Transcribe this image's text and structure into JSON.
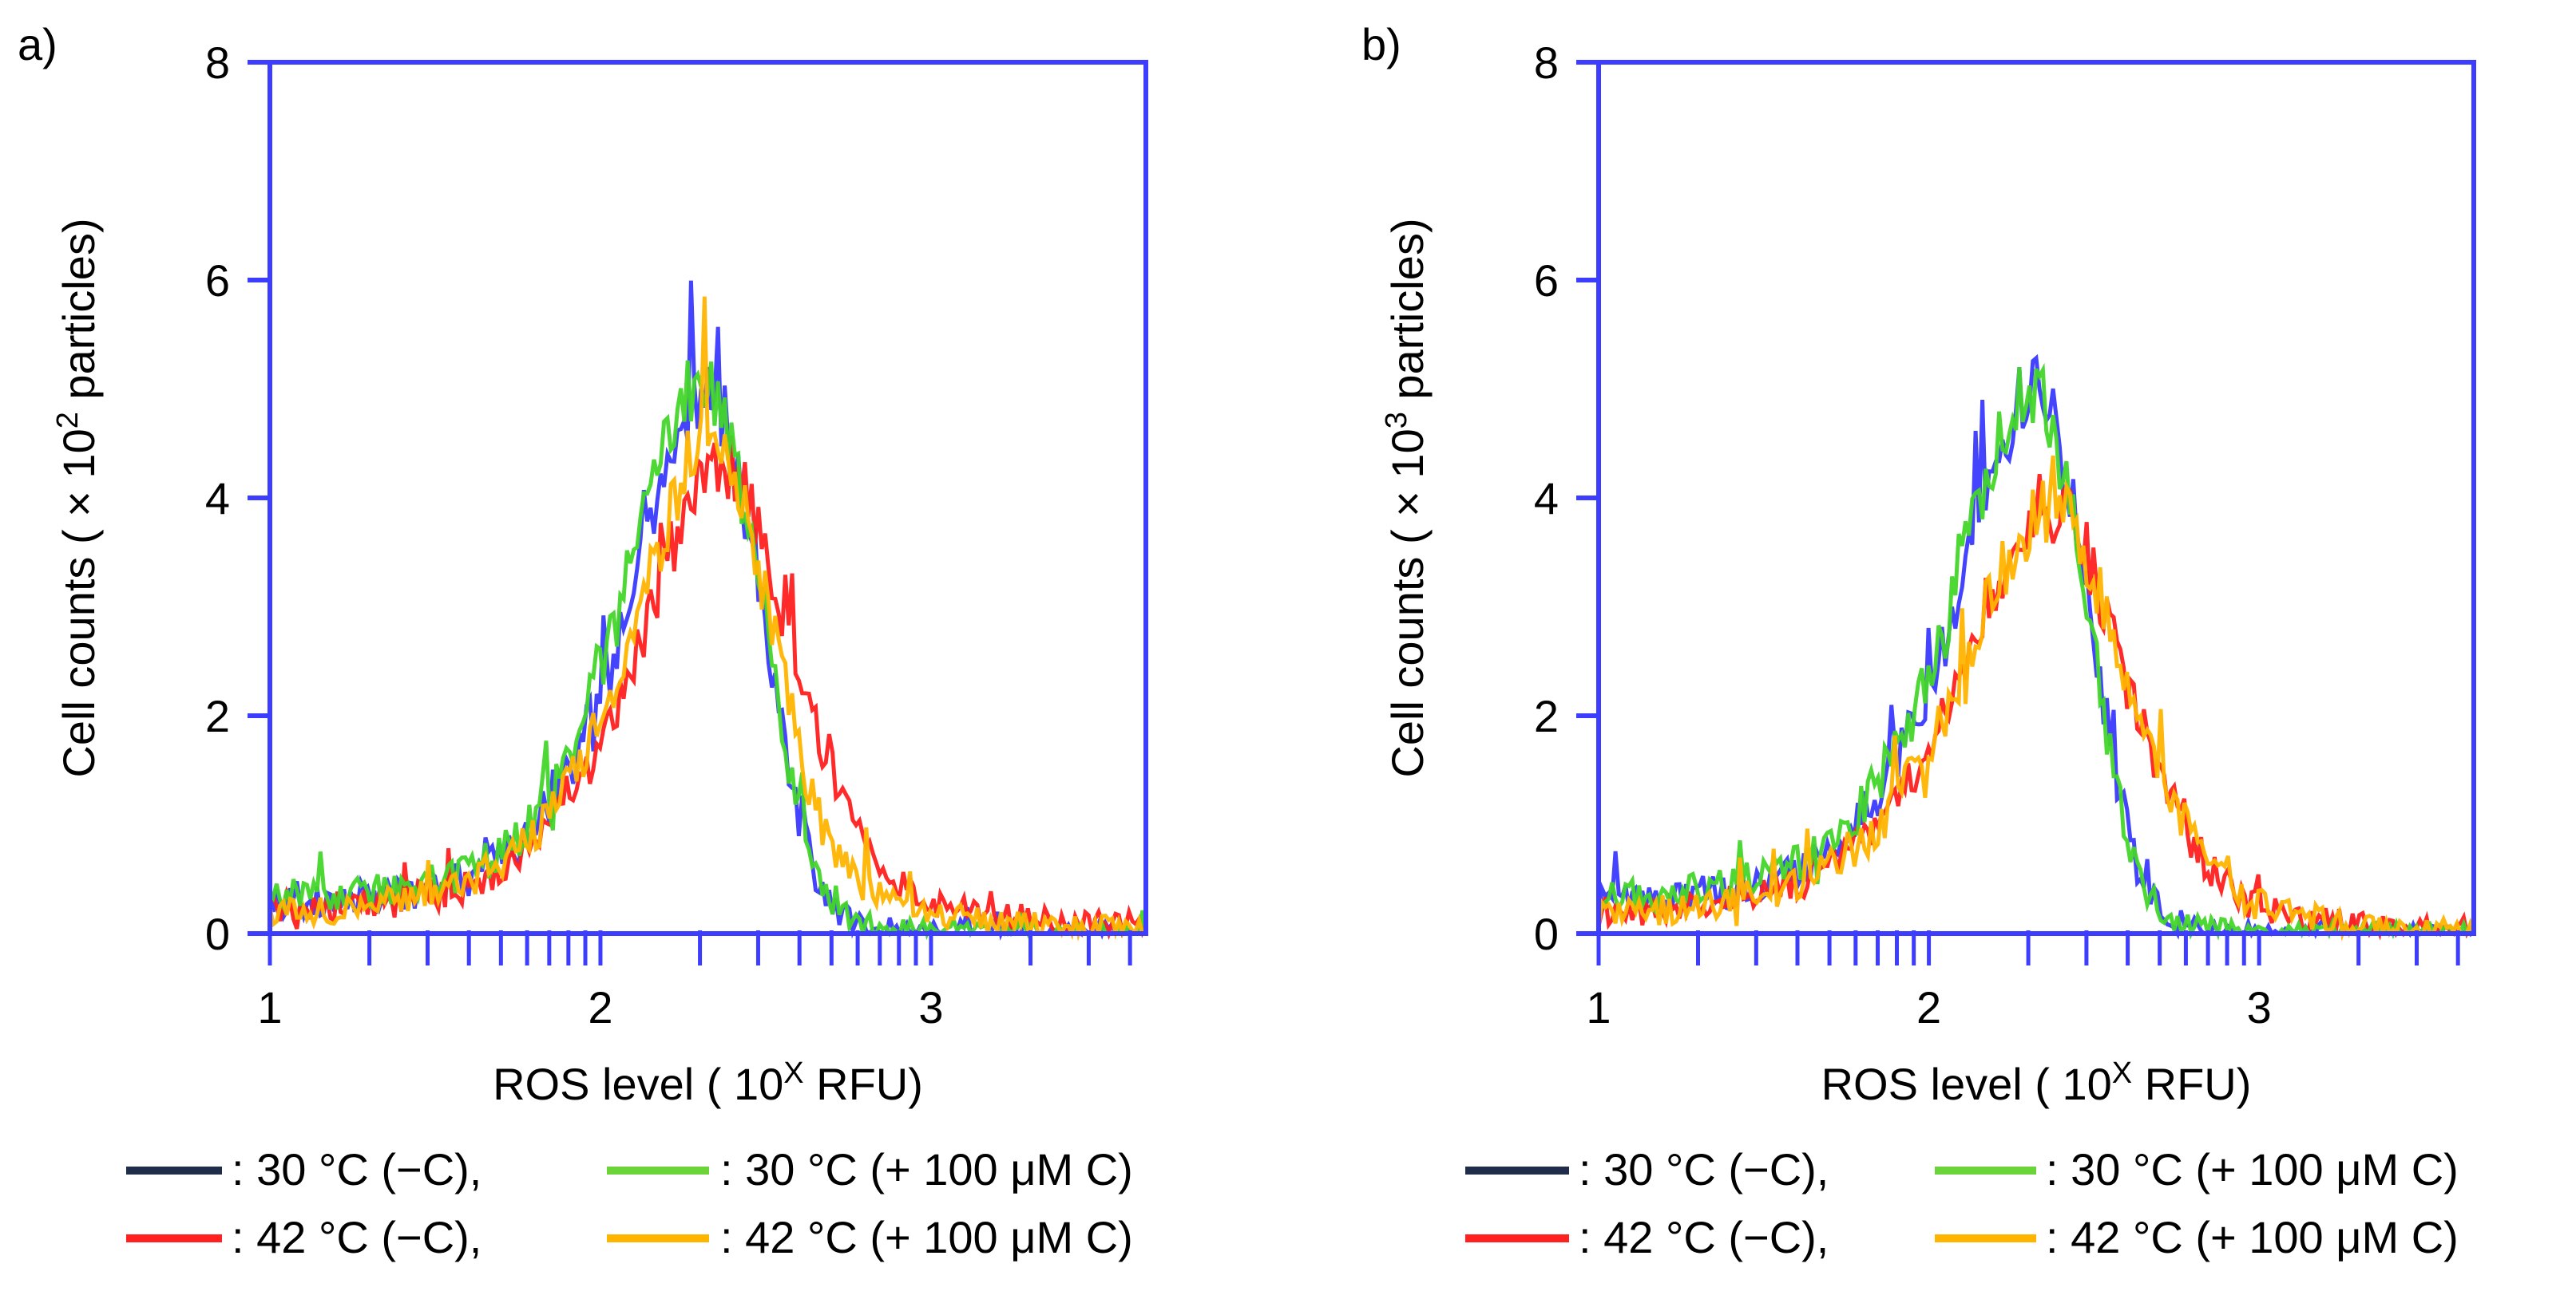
{
  "chart_data": [
    {
      "panel_label": "a)",
      "type": "line",
      "xlabel": {
        "pre": "ROS level ( 10",
        "sup": "X",
        "post": " RFU)"
      },
      "ylabel": {
        "pre": "Cell counts ( × 10",
        "sup": "2",
        "post": " particles)"
      },
      "xlim": [
        1,
        3.65
      ],
      "ylim": [
        0,
        8
      ],
      "x_ticks": [
        1,
        2,
        3
      ],
      "y_ticks": [
        0,
        2,
        4,
        6,
        8
      ],
      "minor_x_ticks_log": true,
      "grid": false,
      "plot_frame_color": "#3d3dff",
      "legend_position": "bottom",
      "series": [
        {
          "name": ": 30 °C (−C),",
          "color": "#3a3aff",
          "legend_color": "#1f2d4a",
          "points": [
            [
              1.0,
              0.3
            ],
            [
              1.2,
              0.3
            ],
            [
              1.4,
              0.35
            ],
            [
              1.6,
              0.5
            ],
            [
              1.75,
              0.8
            ],
            [
              1.85,
              1.2
            ],
            [
              1.95,
              1.8
            ],
            [
              2.05,
              2.6
            ],
            [
              2.12,
              3.4
            ],
            [
              2.2,
              4.2
            ],
            [
              2.27,
              4.8
            ],
            [
              2.32,
              5.0
            ],
            [
              2.37,
              4.7
            ],
            [
              2.42,
              4.2
            ],
            [
              2.47,
              3.4
            ],
            [
              2.52,
              2.4
            ],
            [
              2.57,
              1.5
            ],
            [
              2.62,
              0.8
            ],
            [
              2.68,
              0.35
            ],
            [
              2.75,
              0.12
            ],
            [
              2.85,
              0.05
            ],
            [
              3.0,
              0.02
            ],
            [
              3.3,
              0.01
            ],
            [
              3.65,
              0.0
            ]
          ]
        },
        {
          "name": ": 42 °C (−C),",
          "color": "#ff2020",
          "legend_color": "#ff2020",
          "points": [
            [
              1.0,
              0.25
            ],
            [
              1.2,
              0.25
            ],
            [
              1.4,
              0.3
            ],
            [
              1.6,
              0.45
            ],
            [
              1.75,
              0.7
            ],
            [
              1.85,
              1.0
            ],
            [
              1.95,
              1.5
            ],
            [
              2.05,
              2.0
            ],
            [
              2.12,
              2.7
            ],
            [
              2.2,
              3.4
            ],
            [
              2.27,
              3.9
            ],
            [
              2.33,
              4.2
            ],
            [
              2.4,
              4.3
            ],
            [
              2.45,
              4.0
            ],
            [
              2.5,
              3.6
            ],
            [
              2.55,
              3.0
            ],
            [
              2.6,
              2.4
            ],
            [
              2.67,
              1.7
            ],
            [
              2.75,
              1.1
            ],
            [
              2.85,
              0.6
            ],
            [
              2.95,
              0.35
            ],
            [
              3.1,
              0.22
            ],
            [
              3.3,
              0.15
            ],
            [
              3.5,
              0.1
            ],
            [
              3.65,
              0.08
            ]
          ]
        },
        {
          "name": ": 30 °C (+ 100 μM C)",
          "color": "#44d62a",
          "legend_color": "#6ad43a",
          "points": [
            [
              1.0,
              0.35
            ],
            [
              1.2,
              0.35
            ],
            [
              1.4,
              0.4
            ],
            [
              1.6,
              0.55
            ],
            [
              1.75,
              0.85
            ],
            [
              1.85,
              1.3
            ],
            [
              1.95,
              2.0
            ],
            [
              2.05,
              2.9
            ],
            [
              2.12,
              3.7
            ],
            [
              2.2,
              4.5
            ],
            [
              2.27,
              5.0
            ],
            [
              2.32,
              5.1
            ],
            [
              2.37,
              4.8
            ],
            [
              2.42,
              4.3
            ],
            [
              2.47,
              3.5
            ],
            [
              2.52,
              2.5
            ],
            [
              2.57,
              1.6
            ],
            [
              2.62,
              0.9
            ],
            [
              2.68,
              0.4
            ],
            [
              2.75,
              0.15
            ],
            [
              2.85,
              0.06
            ],
            [
              3.0,
              0.02
            ],
            [
              3.65,
              0.0
            ]
          ]
        },
        {
          "name": ": 42 °C (+ 100 μM C)",
          "color": "#ffb400",
          "legend_color": "#ffb400",
          "points": [
            [
              1.0,
              0.2
            ],
            [
              1.2,
              0.22
            ],
            [
              1.4,
              0.3
            ],
            [
              1.6,
              0.45
            ],
            [
              1.75,
              0.75
            ],
            [
              1.85,
              1.1
            ],
            [
              1.95,
              1.6
            ],
            [
              2.05,
              2.3
            ],
            [
              2.12,
              3.0
            ],
            [
              2.2,
              3.8
            ],
            [
              2.27,
              4.4
            ],
            [
              2.32,
              4.7
            ],
            [
              2.37,
              4.5
            ],
            [
              2.42,
              4.1
            ],
            [
              2.47,
              3.5
            ],
            [
              2.52,
              2.8
            ],
            [
              2.57,
              2.1
            ],
            [
              2.62,
              1.4
            ],
            [
              2.68,
              0.9
            ],
            [
              2.75,
              0.55
            ],
            [
              2.85,
              0.35
            ],
            [
              3.0,
              0.2
            ],
            [
              3.2,
              0.1
            ],
            [
              3.4,
              0.06
            ],
            [
              3.65,
              0.04
            ]
          ]
        }
      ]
    },
    {
      "panel_label": "b)",
      "type": "line",
      "xlabel": {
        "pre": "ROS level ( 10",
        "sup": "X",
        "post": " RFU)"
      },
      "ylabel": {
        "pre": "Cell counts ( × 10",
        "sup": "3",
        "post": " particles)"
      },
      "xlim": [
        1,
        3.65
      ],
      "ylim": [
        0,
        8
      ],
      "x_ticks": [
        1,
        2,
        3
      ],
      "y_ticks": [
        0,
        2,
        4,
        6,
        8
      ],
      "minor_x_ticks_log": true,
      "grid": false,
      "plot_frame_color": "#3d3dff",
      "legend_position": "bottom",
      "series": [
        {
          "name": ": 30 °C (−C),",
          "color": "#3a3aff",
          "legend_color": "#1f2d4a",
          "points": [
            [
              1.0,
              0.3
            ],
            [
              1.2,
              0.3
            ],
            [
              1.4,
              0.4
            ],
            [
              1.6,
              0.6
            ],
            [
              1.75,
              0.9
            ],
            [
              1.85,
              1.3
            ],
            [
              1.95,
              1.9
            ],
            [
              2.05,
              2.7
            ],
            [
              2.12,
              3.5
            ],
            [
              2.2,
              4.3
            ],
            [
              2.27,
              4.9
            ],
            [
              2.32,
              5.1
            ],
            [
              2.37,
              4.8
            ],
            [
              2.42,
              4.2
            ],
            [
              2.47,
              3.3
            ],
            [
              2.52,
              2.3
            ],
            [
              2.57,
              1.4
            ],
            [
              2.62,
              0.7
            ],
            [
              2.68,
              0.3
            ],
            [
              2.75,
              0.1
            ],
            [
              2.85,
              0.04
            ],
            [
              3.0,
              0.01
            ],
            [
              3.65,
              0.0
            ]
          ]
        },
        {
          "name": ": 42 °C (−C),",
          "color": "#ff2020",
          "legend_color": "#ff2020",
          "points": [
            [
              1.0,
              0.2
            ],
            [
              1.2,
              0.22
            ],
            [
              1.4,
              0.3
            ],
            [
              1.6,
              0.45
            ],
            [
              1.75,
              0.7
            ],
            [
              1.85,
              1.0
            ],
            [
              1.95,
              1.45
            ],
            [
              2.05,
              2.0
            ],
            [
              2.12,
              2.6
            ],
            [
              2.2,
              3.2
            ],
            [
              2.27,
              3.6
            ],
            [
              2.33,
              3.85
            ],
            [
              2.4,
              3.9
            ],
            [
              2.45,
              3.7
            ],
            [
              2.5,
              3.3
            ],
            [
              2.55,
              2.8
            ],
            [
              2.6,
              2.3
            ],
            [
              2.67,
              1.7
            ],
            [
              2.75,
              1.1
            ],
            [
              2.85,
              0.6
            ],
            [
              2.95,
              0.3
            ],
            [
              3.1,
              0.15
            ],
            [
              3.3,
              0.08
            ],
            [
              3.5,
              0.05
            ],
            [
              3.65,
              0.04
            ]
          ]
        },
        {
          "name": ": 30 °C (+ 100 μM C)",
          "color": "#44d62a",
          "legend_color": "#6ad43a",
          "points": [
            [
              1.0,
              0.35
            ],
            [
              1.2,
              0.35
            ],
            [
              1.4,
              0.45
            ],
            [
              1.6,
              0.65
            ],
            [
              1.75,
              0.95
            ],
            [
              1.85,
              1.4
            ],
            [
              1.95,
              2.0
            ],
            [
              2.05,
              2.8
            ],
            [
              2.12,
              3.6
            ],
            [
              2.2,
              4.4
            ],
            [
              2.27,
              4.9
            ],
            [
              2.32,
              5.0
            ],
            [
              2.37,
              4.7
            ],
            [
              2.42,
              4.1
            ],
            [
              2.47,
              3.2
            ],
            [
              2.52,
              2.2
            ],
            [
              2.57,
              1.3
            ],
            [
              2.62,
              0.65
            ],
            [
              2.68,
              0.28
            ],
            [
              2.75,
              0.1
            ],
            [
              2.85,
              0.04
            ],
            [
              3.0,
              0.01
            ],
            [
              3.65,
              0.0
            ]
          ]
        },
        {
          "name": ": 42 °C (+ 100 μM C)",
          "color": "#ffb400",
          "legend_color": "#ffb400",
          "points": [
            [
              1.0,
              0.2
            ],
            [
              1.2,
              0.22
            ],
            [
              1.4,
              0.3
            ],
            [
              1.6,
              0.45
            ],
            [
              1.75,
              0.7
            ],
            [
              1.85,
              1.0
            ],
            [
              1.95,
              1.45
            ],
            [
              2.05,
              2.0
            ],
            [
              2.12,
              2.6
            ],
            [
              2.2,
              3.2
            ],
            [
              2.27,
              3.6
            ],
            [
              2.33,
              3.85
            ],
            [
              2.4,
              3.9
            ],
            [
              2.45,
              3.7
            ],
            [
              2.5,
              3.3
            ],
            [
              2.55,
              2.85
            ],
            [
              2.6,
              2.35
            ],
            [
              2.67,
              1.75
            ],
            [
              2.75,
              1.15
            ],
            [
              2.85,
              0.65
            ],
            [
              2.95,
              0.32
            ],
            [
              3.1,
              0.16
            ],
            [
              3.3,
              0.08
            ],
            [
              3.5,
              0.05
            ],
            [
              3.65,
              0.04
            ]
          ]
        }
      ]
    }
  ]
}
